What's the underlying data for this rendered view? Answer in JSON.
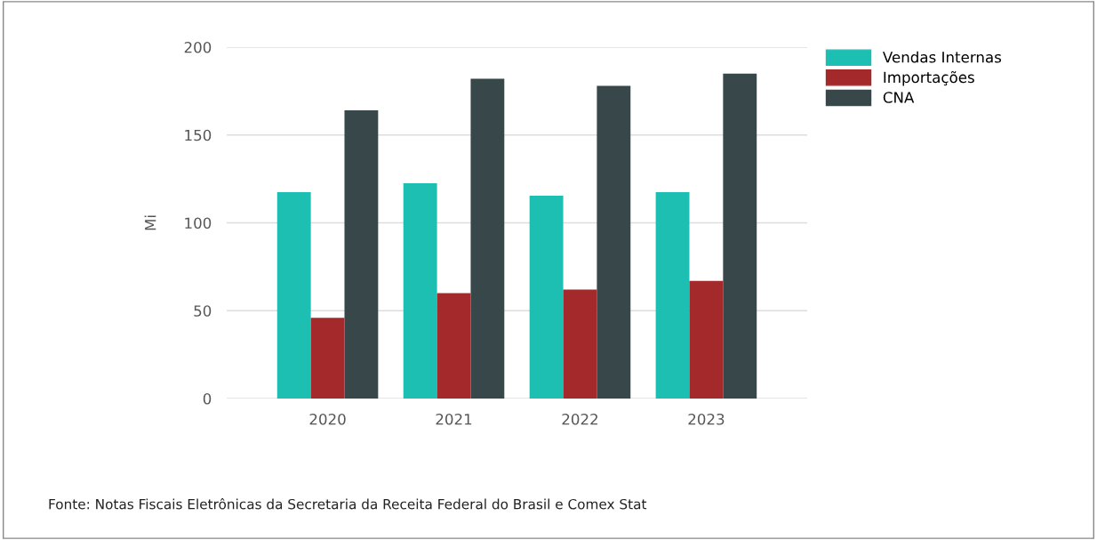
{
  "chart_data": {
    "type": "bar",
    "ylabel": "Mi",
    "categories": [
      "2020",
      "2021",
      "2022",
      "2023"
    ],
    "series": [
      {
        "name": "Vendas Internas",
        "color": "#1cbfb1",
        "values": [
          117.5,
          122.5,
          115.5,
          117.5
        ]
      },
      {
        "name": "Importações",
        "color": "#a3292b",
        "values": [
          46,
          60,
          62,
          67
        ]
      },
      {
        "name": "CNA",
        "color": "#37474a",
        "values": [
          164,
          182,
          178,
          185
        ]
      }
    ],
    "ylim": [
      0,
      200
    ],
    "yticks": [
      0,
      50,
      100,
      150,
      200
    ],
    "grid": "y",
    "legend": "top right",
    "annotations": [
      "Fonte: Notas Fiscais Eletrônicas da Secretaria da Receita Federal do Brasil e Comex Stat"
    ]
  }
}
